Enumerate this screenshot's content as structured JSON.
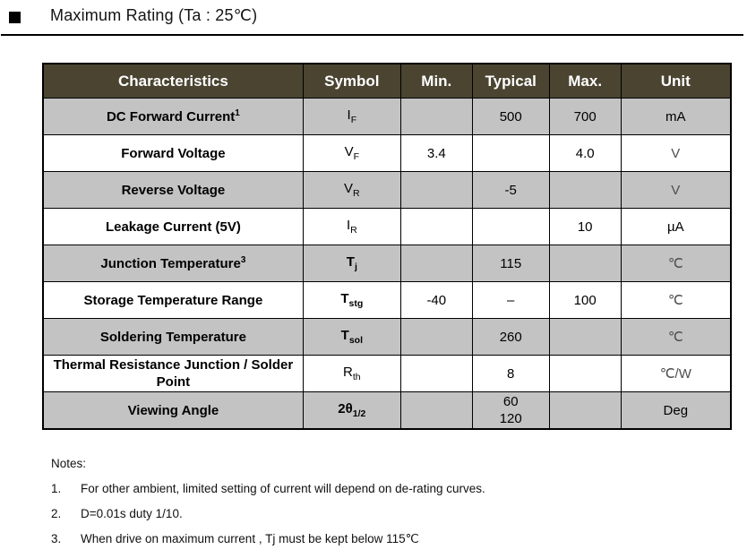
{
  "title": "Maximum Rating (Ta : 25℃)",
  "colors": {
    "header_bg": "#4a4431",
    "header_text": "#ffffff",
    "row_alt_bg": "#c3c3c3",
    "unit_light_text": "#4d4d4d"
  },
  "table": {
    "columns": [
      "Characteristics",
      "Symbol",
      "Min.",
      "Typical",
      "Max.",
      "Unit"
    ],
    "rows": [
      {
        "name": "DC Forward Current",
        "name_sup": "1",
        "symbol_base": "I",
        "symbol_sub": "F",
        "min": "",
        "typical": "500",
        "max": "700",
        "unit": "mA"
      },
      {
        "name": "Forward Voltage",
        "symbol_base": "V",
        "symbol_sub": "F",
        "min": "3.4",
        "typical": "",
        "max": "4.0",
        "unit": "V"
      },
      {
        "name": "Reverse Voltage",
        "symbol_base": "V",
        "symbol_sub": "R",
        "min": "",
        "typical": "-5",
        "max": "",
        "unit": "V"
      },
      {
        "name": "Leakage Current (5V)",
        "symbol_base": "I",
        "symbol_sub": "R",
        "min": "",
        "typical": "",
        "max": "10",
        "unit": "µA"
      },
      {
        "name": "Junction Temperature",
        "name_sup": "3",
        "symbol_base": "T",
        "symbol_sub": "j",
        "min": "",
        "typical": "115",
        "max": "",
        "unit": "℃"
      },
      {
        "name": "Storage Temperature Range",
        "symbol_base": "T",
        "symbol_sub": "stg",
        "min": "-40",
        "typical": "–",
        "max": "100",
        "unit": "℃"
      },
      {
        "name": "Soldering Temperature",
        "symbol_base": "T",
        "symbol_sub": "sol",
        "min": "",
        "typical": "260",
        "max": "",
        "unit": "℃"
      },
      {
        "name": "Thermal Resistance Junction / Solder Point",
        "symbol_base": "R",
        "symbol_sub": "th",
        "min": "",
        "typical": "8",
        "max": "",
        "unit": "℃/W"
      },
      {
        "name": "Viewing Angle",
        "symbol_base": "2θ",
        "symbol_sub": "1/2",
        "min": "",
        "typical": "60",
        "typical2": "120",
        "max": "",
        "unit": "Deg"
      }
    ]
  },
  "notes": {
    "heading": "Notes:",
    "items": [
      {
        "num": "1.",
        "text": "For other ambient, limited setting of current will depend on de-rating curves."
      },
      {
        "num": "2.",
        "text": "D=0.01s duty 1/10."
      },
      {
        "num": "3.",
        "text": "When drive on maximum current , Tj must be kept below 115℃"
      }
    ]
  }
}
